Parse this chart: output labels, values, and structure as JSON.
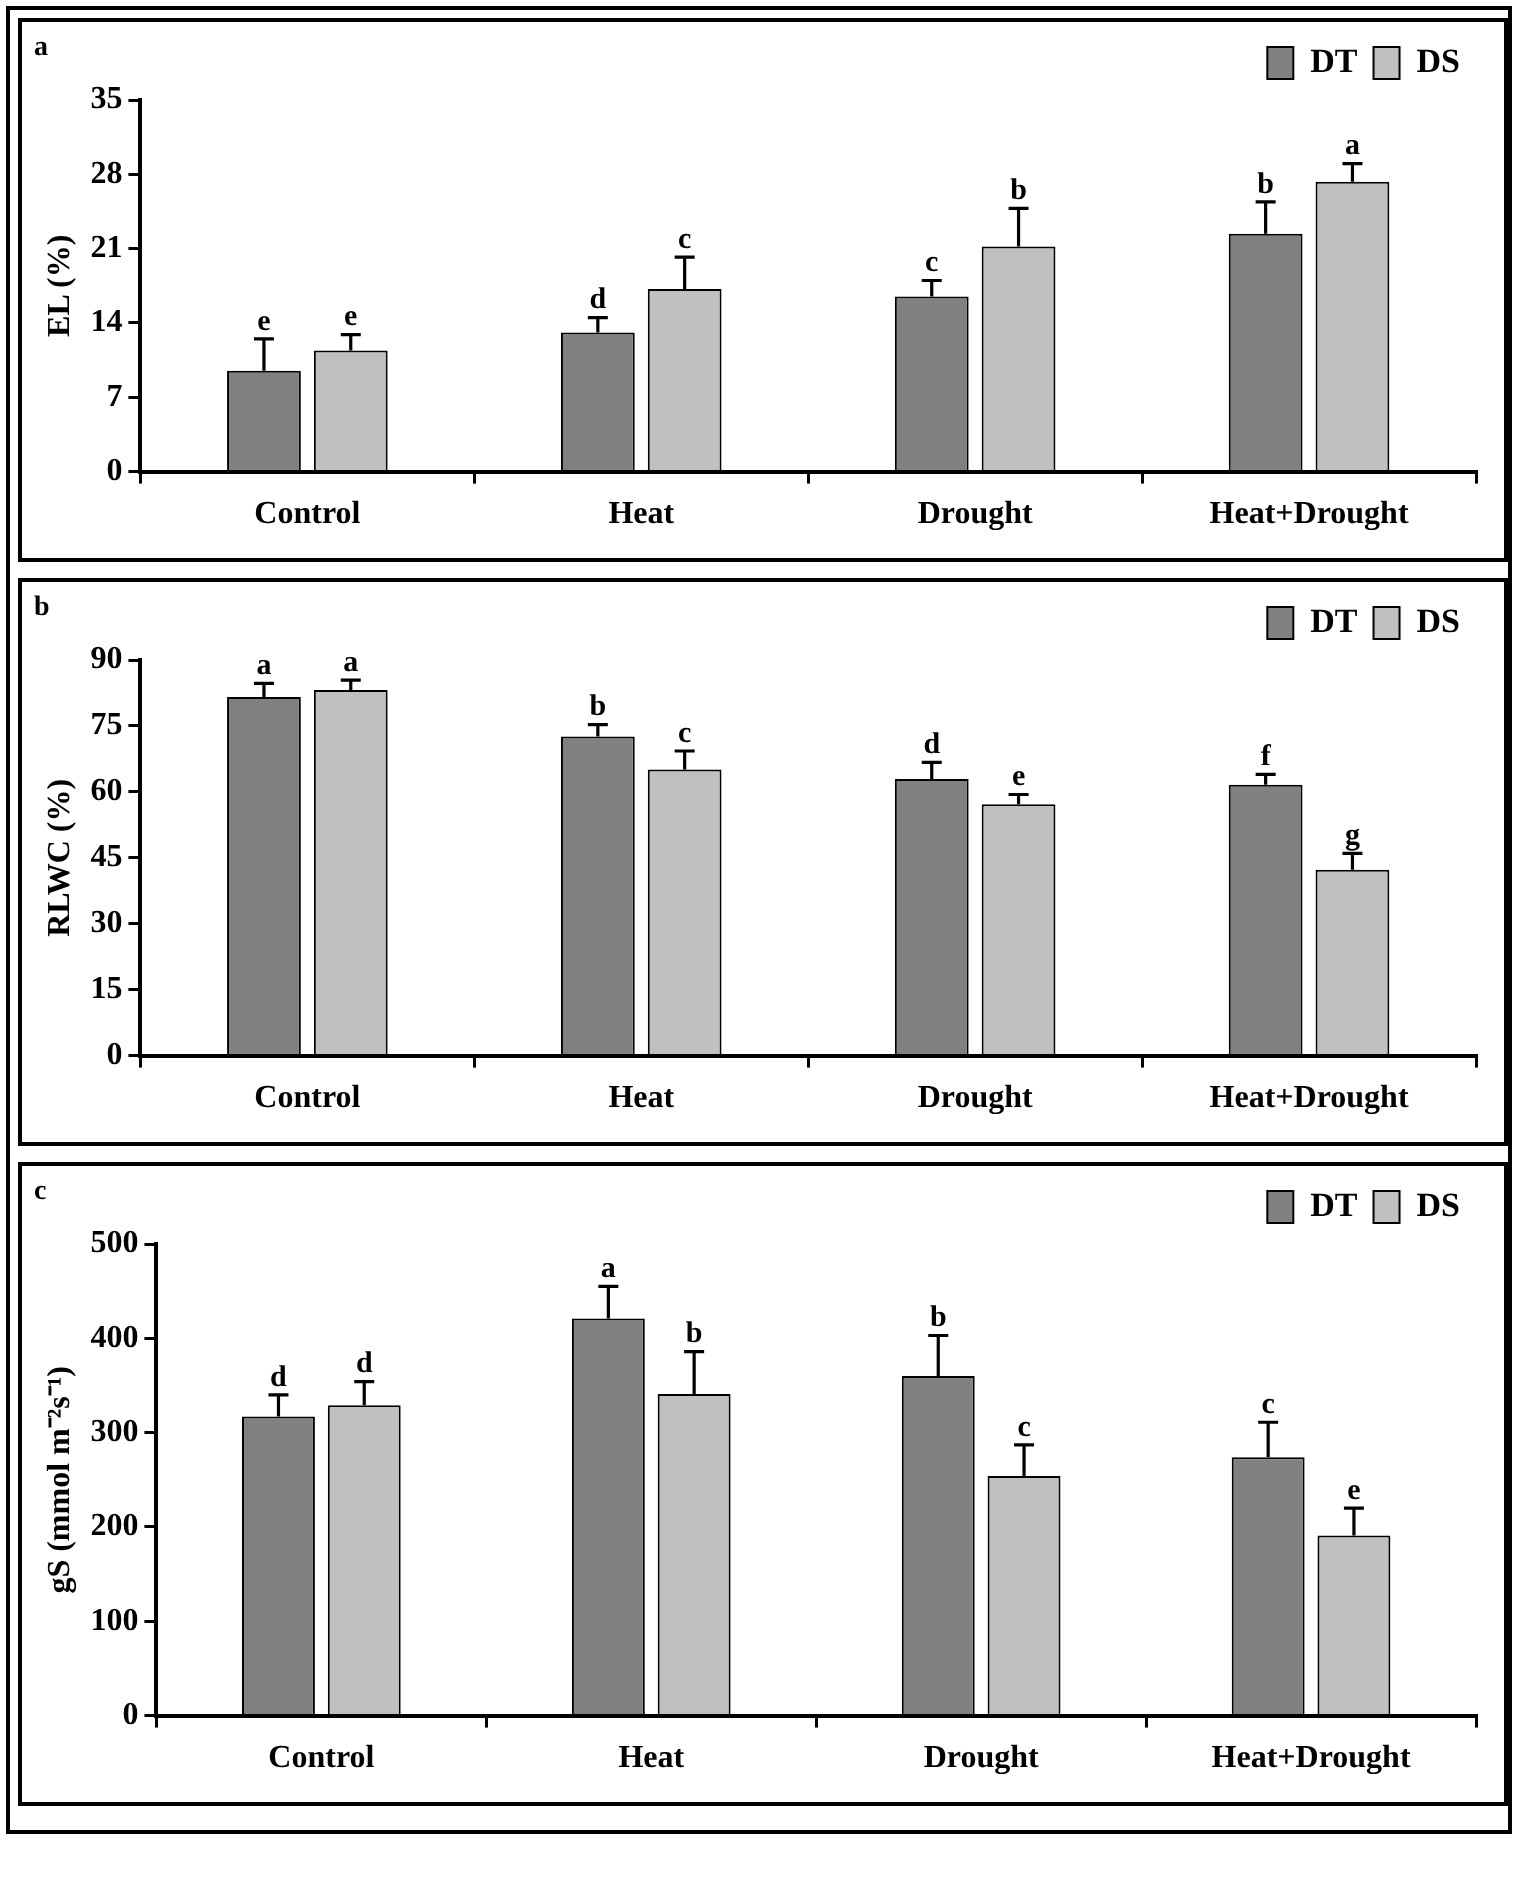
{
  "chart_data": [
    {
      "type": "bar",
      "title": "a",
      "ylabel": "EL (%)",
      "categories": [
        "Control",
        "Heat",
        "Drought",
        "Heat+Drought"
      ],
      "ylim": [
        0,
        35
      ],
      "yticks": [
        0,
        7,
        14,
        21,
        28,
        35
      ],
      "legend": "top right",
      "series": [
        {
          "name": "DT",
          "color": "#808080",
          "values": [
            9.5,
            13.1,
            16.5,
            22.4
          ],
          "errors": [
            3.0,
            1.4,
            1.5,
            3.0
          ],
          "value_labels": [
            "e",
            "d",
            "c",
            "b"
          ]
        },
        {
          "name": "DS",
          "color": "#c0c0c0",
          "values": [
            11.4,
            17.2,
            21.2,
            27.3
          ],
          "errors": [
            1.5,
            3.0,
            3.6,
            1.7
          ],
          "value_labels": [
            "e",
            "c",
            "b",
            "a"
          ]
        }
      ]
    },
    {
      "type": "bar",
      "title": "b",
      "ylabel": "RLWC (%)",
      "categories": [
        "Control",
        "Heat",
        "Drought",
        "Heat+Drought"
      ],
      "ylim": [
        0,
        90
      ],
      "yticks": [
        0,
        15,
        30,
        45,
        60,
        75,
        90
      ],
      "legend": "top right",
      "series": [
        {
          "name": "DT",
          "color": "#808080",
          "values": [
            81.6,
            72.6,
            62.9,
            61.6
          ],
          "errors": [
            3.1,
            2.7,
            3.8,
            2.4
          ],
          "value_labels": [
            "a",
            "b",
            "d",
            "f"
          ]
        },
        {
          "name": "DS",
          "color": "#c0c0c0",
          "values": [
            83.2,
            65.1,
            57.2,
            42.3
          ],
          "errors": [
            2.2,
            4.2,
            2.2,
            3.7
          ],
          "value_labels": [
            "a",
            "c",
            "e",
            "g"
          ]
        }
      ]
    },
    {
      "type": "bar",
      "title": "c",
      "ylabel": "gS (mmol m⁻²s⁻¹)",
      "categories": [
        "Control",
        "Heat",
        "Drought",
        "Heat+Drought"
      ],
      "ylim": [
        0,
        500
      ],
      "yticks": [
        0,
        100,
        200,
        300,
        400,
        500
      ],
      "legend": "top right",
      "series": [
        {
          "name": "DT",
          "color": "#808080",
          "values": [
            317,
            421,
            360,
            274
          ],
          "errors": [
            23,
            34,
            43,
            37
          ],
          "value_labels": [
            "d",
            "a",
            "b",
            "c"
          ]
        },
        {
          "name": "DS",
          "color": "#c0c0c0",
          "values": [
            329,
            341,
            254,
            191
          ],
          "errors": [
            25,
            45,
            33,
            29
          ],
          "value_labels": [
            "d",
            "b",
            "c",
            "e"
          ]
        }
      ]
    }
  ]
}
